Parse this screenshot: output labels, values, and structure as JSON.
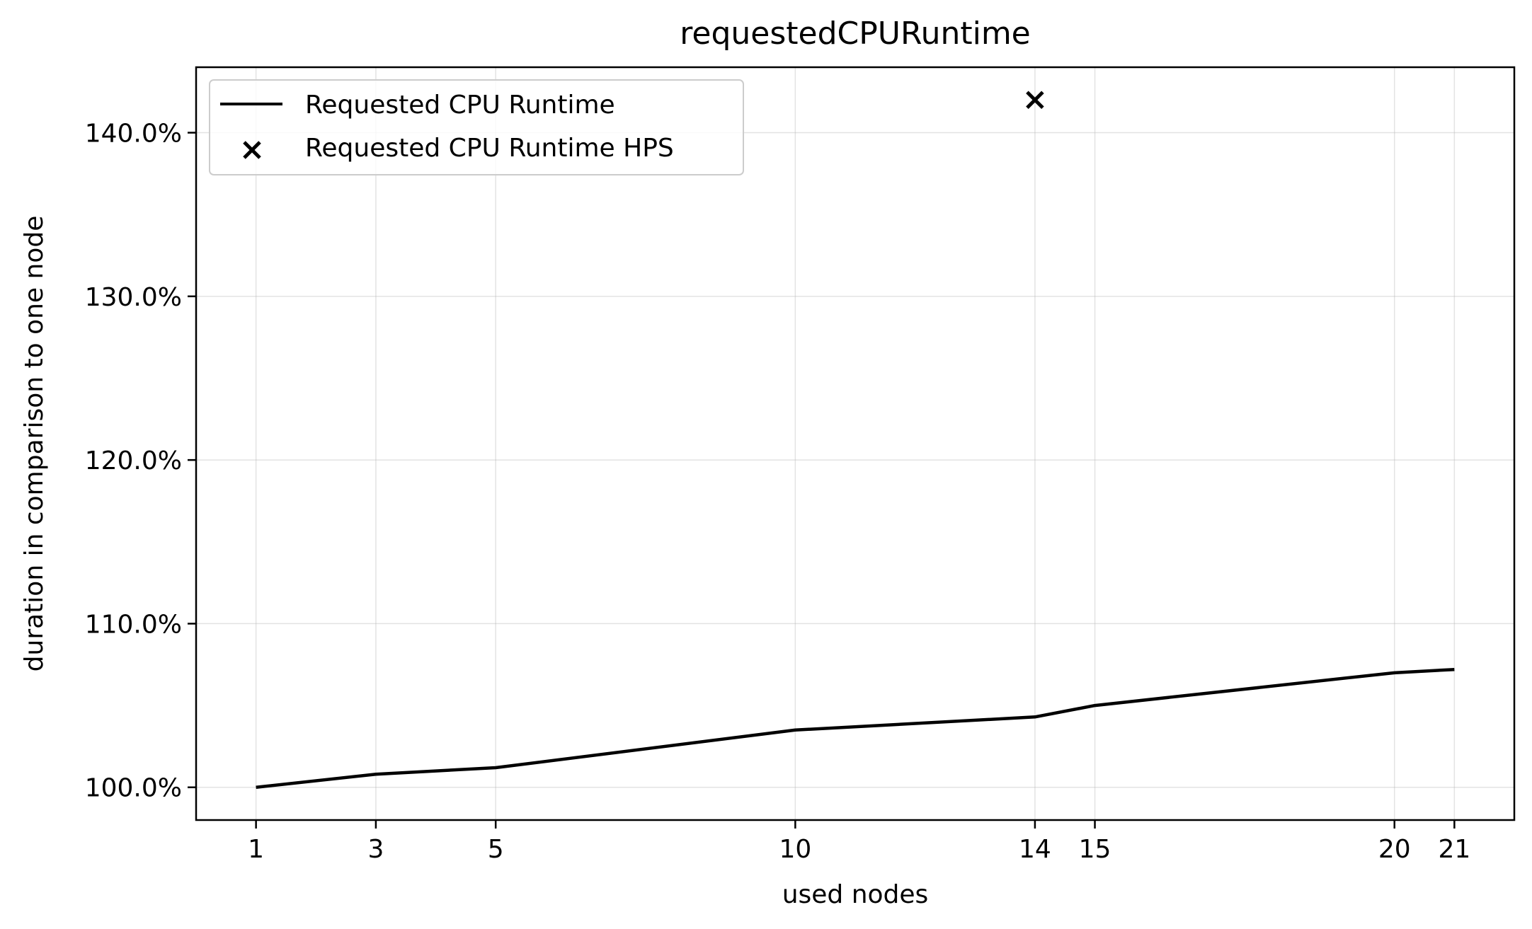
{
  "chart_data": {
    "type": "line",
    "title": "requestedCPURuntime",
    "xlabel": "used nodes",
    "ylabel": "duration in comparison to one node",
    "xlim": [
      0,
      22.0
    ],
    "ylim": [
      98.0,
      144.0
    ],
    "xticks": [
      1,
      3,
      5,
      10,
      14,
      15,
      20,
      21
    ],
    "xtick_labels": [
      "1",
      "3",
      "5",
      "10",
      "14",
      "15",
      "20",
      "21"
    ],
    "yticks": [
      100,
      110,
      120,
      130,
      140
    ],
    "ytick_labels": [
      "100.0%",
      "110.0%",
      "120.0%",
      "130.0%",
      "140.0%"
    ],
    "grid": true,
    "legend_position": "top-left",
    "series": [
      {
        "name": "Requested CPU Runtime",
        "kind": "line",
        "color": "#000000",
        "x": [
          1,
          3,
          5,
          10,
          14,
          15,
          20,
          21
        ],
        "y": [
          100.0,
          100.8,
          101.2,
          103.5,
          104.3,
          105.0,
          107.0,
          107.2
        ]
      },
      {
        "name": "Requested CPU Runtime HPS",
        "kind": "scatter",
        "marker": "x",
        "color": "#000000",
        "x": [
          14
        ],
        "y": [
          142.0
        ]
      }
    ]
  }
}
